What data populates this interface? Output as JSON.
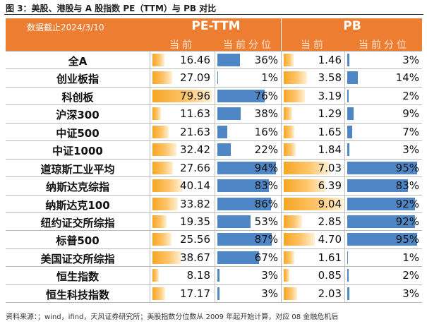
{
  "figure_title": "图 3：美股、港股与 A 股指数 PE（TTM）与 PB 对比",
  "header": {
    "note": "数据截止2024/3/10",
    "groups": [
      "PE-TTM",
      "PB"
    ],
    "sub": [
      "当前",
      "当前分位",
      "当前",
      "当前分位"
    ]
  },
  "colors": {
    "header": "#ed7d31",
    "value_bar": "#f5a623",
    "percentile_bar": "#4f86c6"
  },
  "rows": [
    {
      "name": "全A",
      "pe": "16.46",
      "pe_pct": "36%",
      "pb": "1.46",
      "pb_pct": "3%"
    },
    {
      "name": "创业板指",
      "pe": "27.09",
      "pe_pct": "1%",
      "pb": "3.58",
      "pb_pct": "14%"
    },
    {
      "name": "科创板",
      "pe": "79.96",
      "pe_pct": "76%",
      "pb": "3.19",
      "pb_pct": "2%"
    },
    {
      "name": "沪深300",
      "pe": "11.63",
      "pe_pct": "38%",
      "pb": "1.29",
      "pb_pct": "9%"
    },
    {
      "name": "中证500",
      "pe": "21.63",
      "pe_pct": "16%",
      "pb": "1.65",
      "pb_pct": "7%"
    },
    {
      "name": "中证1000",
      "pe": "32.42",
      "pe_pct": "22%",
      "pb": "1.84",
      "pb_pct": "3%"
    },
    {
      "name": "道琼斯工业平均",
      "pe": "27.66",
      "pe_pct": "94%",
      "pb": "7.03",
      "pb_pct": "95%"
    },
    {
      "name": "纳斯达克综指",
      "pe": "40.14",
      "pe_pct": "83%",
      "pb": "6.39",
      "pb_pct": "83%"
    },
    {
      "name": "纳斯达克100",
      "pe": "33.82",
      "pe_pct": "86%",
      "pb": "9.04",
      "pb_pct": "92%"
    },
    {
      "name": "纽约证交所综指",
      "pe": "19.35",
      "pe_pct": "53%",
      "pb": "2.85",
      "pb_pct": "92%"
    },
    {
      "name": "标普500",
      "pe": "25.56",
      "pe_pct": "87%",
      "pb": "4.70",
      "pb_pct": "95%"
    },
    {
      "name": "美国证交所综指",
      "pe": "38.67",
      "pe_pct": "67%",
      "pb": "1.61",
      "pb_pct": "1%"
    },
    {
      "name": "恒生指数",
      "pe": "8.18",
      "pe_pct": "3%",
      "pb": "0.85",
      "pb_pct": "2%"
    },
    {
      "name": "恒生科技指数",
      "pe": "17.17",
      "pe_pct": "3%",
      "pb": "2.03",
      "pb_pct": "3%"
    }
  ],
  "source": "资料来源：；wind，ifind，天风证券研究所；美股指数分位数从 2009 年起开始计算，对应 08 金融危机后"
}
